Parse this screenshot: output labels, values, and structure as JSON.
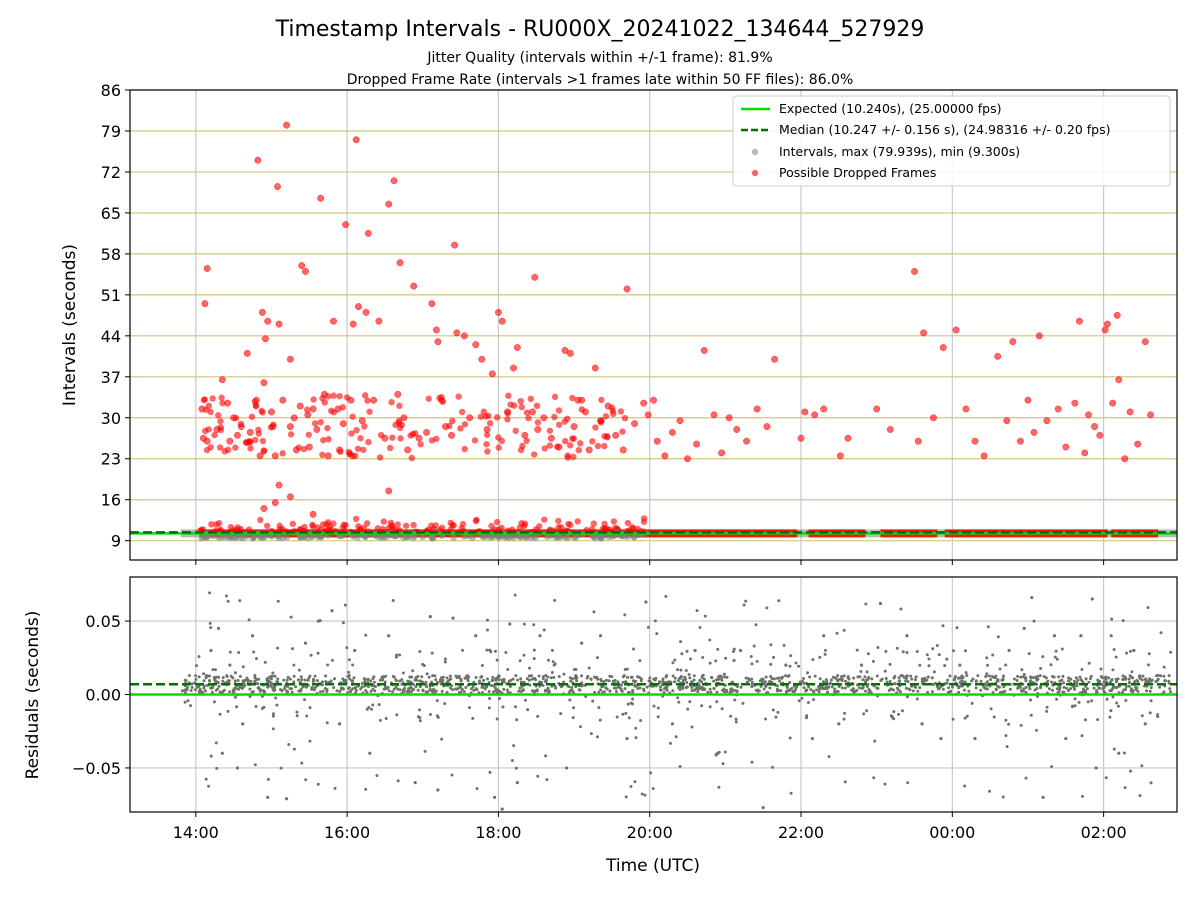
{
  "chart_data": [
    {
      "type": "scatter",
      "panel": "intervals",
      "title": "Timestamp Intervals - RU000X_20241022_134644_527929",
      "subtitle_lines": [
        "Jitter Quality (intervals within +/-1 frame): 81.9%",
        "Dropped Frame Rate (intervals >1 frames late within 50 FF files): 86.0%"
      ],
      "ylabel": "Intervals (seconds)",
      "ylim": [
        5.7,
        86
      ],
      "yticks": [
        9,
        16,
        23,
        30,
        37,
        44,
        51,
        58,
        65,
        72,
        79,
        86
      ],
      "xlim_hours": [
        13.13,
        26.97
      ],
      "grid": true,
      "legend_position": "upper right",
      "legend": [
        "Expected (10.240s), (25.00000 fps)",
        "Median (10.247 +/- 0.156 s), (24.98316 +/- 0.20 fps)",
        "Intervals, max (79.939s), min (9.300s)",
        "Possible Dropped Frames"
      ],
      "expected": 10.24,
      "median": 10.247,
      "colors": {
        "expected": "#00e000",
        "median": "#007000",
        "intervals": "#808080",
        "dropped": "#ff0000",
        "hgrid": "#d4c47a"
      },
      "series": [
        {
          "name": "Possible Dropped Frames",
          "points": [
            [
              14.08,
              31.5
            ],
            [
              14.12,
              49.5
            ],
            [
              14.15,
              55.5
            ],
            [
              14.1,
              26.5
            ],
            [
              14.15,
              26.0
            ],
            [
              14.28,
              28.0
            ],
            [
              14.35,
              36.5
            ],
            [
              14.42,
              32.5
            ],
            [
              14.45,
              26.0
            ],
            [
              14.5,
              30.0
            ],
            [
              14.55,
              27.0
            ],
            [
              14.6,
              28.5
            ],
            [
              14.68,
              41.0
            ],
            [
              14.72,
              27.5
            ],
            [
              14.8,
              33.0
            ],
            [
              14.82,
              74.0
            ],
            [
              14.85,
              23.5
            ],
            [
              14.88,
              48.0
            ],
            [
              14.9,
              36.0
            ],
            [
              14.92,
              43.5
            ],
            [
              14.95,
              46.5
            ],
            [
              15.0,
              31.0
            ],
            [
              15.02,
              28.5
            ],
            [
              15.05,
              23.5
            ],
            [
              15.08,
              69.5
            ],
            [
              15.1,
              46.0
            ],
            [
              15.15,
              33.0
            ],
            [
              15.2,
              80.0
            ],
            [
              15.25,
              40.0
            ],
            [
              15.25,
              28.5
            ],
            [
              15.3,
              30.0
            ],
            [
              15.33,
              24.5
            ],
            [
              15.38,
              32.0
            ],
            [
              15.4,
              56.0
            ],
            [
              15.45,
              55.0
            ],
            [
              15.48,
              30.5
            ],
            [
              15.5,
              25.0
            ],
            [
              15.55,
              31.5
            ],
            [
              15.6,
              28.0
            ],
            [
              15.65,
              67.5
            ],
            [
              15.7,
              34.0
            ],
            [
              15.75,
              23.5
            ],
            [
              15.82,
              46.5
            ],
            [
              15.88,
              31.5
            ],
            [
              15.9,
              24.5
            ],
            [
              15.95,
              29.0
            ],
            [
              15.98,
              63.0
            ],
            [
              16.05,
              33.0
            ],
            [
              16.08,
              46.0
            ],
            [
              16.12,
              77.5
            ],
            [
              16.15,
              49.0
            ],
            [
              16.2,
              29.5
            ],
            [
              16.25,
              48.0
            ],
            [
              16.28,
              61.5
            ],
            [
              16.35,
              33.0
            ],
            [
              16.42,
              46.5
            ],
            [
              16.5,
              26.5
            ],
            [
              16.55,
              66.5
            ],
            [
              16.62,
              70.5
            ],
            [
              16.67,
              34.0
            ],
            [
              16.7,
              56.5
            ],
            [
              16.75,
              30.0
            ],
            [
              16.8,
              24.5
            ],
            [
              16.88,
              52.5
            ],
            [
              16.95,
              26.5
            ],
            [
              17.05,
              27.5
            ],
            [
              17.12,
              49.5
            ],
            [
              17.18,
              45.0
            ],
            [
              17.2,
              43.0
            ],
            [
              17.25,
              33.0
            ],
            [
              17.3,
              28.5
            ],
            [
              17.38,
              27.0
            ],
            [
              17.42,
              59.5
            ],
            [
              17.45,
              44.5
            ],
            [
              17.55,
              44.0
            ],
            [
              17.62,
              30.0
            ],
            [
              17.7,
              42.5
            ],
            [
              17.78,
              40.0
            ],
            [
              17.85,
              28.0
            ],
            [
              17.92,
              37.5
            ],
            [
              18.0,
              48.0
            ],
            [
              18.05,
              46.5
            ],
            [
              18.12,
              31.0
            ],
            [
              18.2,
              38.5
            ],
            [
              18.25,
              42.0
            ],
            [
              18.35,
              27.0
            ],
            [
              18.45,
              31.0
            ],
            [
              18.48,
              54.0
            ],
            [
              18.52,
              28.0
            ],
            [
              18.6,
              30.0
            ],
            [
              18.7,
              26.5
            ],
            [
              18.8,
              25.0
            ],
            [
              18.88,
              41.5
            ],
            [
              18.95,
              41.0
            ],
            [
              19.0,
              28.5
            ],
            [
              19.05,
              33.0
            ],
            [
              19.1,
              33.0
            ],
            [
              19.15,
              31.0
            ],
            [
              19.2,
              24.5
            ],
            [
              19.28,
              38.5
            ],
            [
              19.35,
              29.5
            ],
            [
              19.45,
              32.0
            ],
            [
              19.55,
              27.0
            ],
            [
              19.65,
              24.5
            ],
            [
              19.7,
              52.0
            ],
            [
              19.8,
              29.0
            ],
            [
              19.92,
              32.5
            ],
            [
              19.98,
              30.5
            ],
            [
              20.05,
              33.0
            ],
            [
              20.1,
              26.0
            ],
            [
              20.2,
              23.5
            ],
            [
              20.3,
              27.5
            ],
            [
              20.4,
              29.5
            ],
            [
              20.5,
              23.0
            ],
            [
              20.62,
              25.5
            ],
            [
              20.72,
              41.5
            ],
            [
              20.85,
              30.5
            ],
            [
              20.95,
              24.0
            ],
            [
              21.05,
              30.0
            ],
            [
              21.15,
              28.0
            ],
            [
              21.28,
              26.0
            ],
            [
              21.42,
              31.5
            ],
            [
              21.55,
              28.5
            ],
            [
              21.65,
              40.0
            ],
            [
              22.0,
              26.5
            ],
            [
              22.05,
              31.0
            ],
            [
              22.18,
              30.5
            ],
            [
              22.3,
              31.5
            ],
            [
              22.52,
              23.5
            ],
            [
              22.62,
              26.5
            ],
            [
              23.0,
              31.5
            ],
            [
              23.18,
              28.0
            ],
            [
              23.5,
              55.0
            ],
            [
              23.55,
              26.0
            ],
            [
              23.62,
              44.5
            ],
            [
              23.75,
              30.0
            ],
            [
              23.88,
              42.0
            ],
            [
              24.05,
              45.0
            ],
            [
              24.18,
              31.5
            ],
            [
              24.3,
              26.0
            ],
            [
              24.42,
              23.5
            ],
            [
              24.6,
              40.5
            ],
            [
              24.72,
              29.5
            ],
            [
              24.8,
              43.0
            ],
            [
              24.9,
              26.0
            ],
            [
              25.0,
              33.0
            ],
            [
              25.08,
              27.5
            ],
            [
              25.15,
              44.0
            ],
            [
              25.25,
              29.5
            ],
            [
              25.4,
              31.5
            ],
            [
              25.5,
              25.0
            ],
            [
              25.62,
              32.5
            ],
            [
              25.68,
              46.5
            ],
            [
              25.75,
              24.0
            ],
            [
              25.8,
              30.5
            ],
            [
              25.88,
              28.5
            ],
            [
              25.95,
              27.0
            ],
            [
              26.02,
              45.0
            ],
            [
              26.05,
              46.0
            ],
            [
              26.12,
              32.5
            ],
            [
              26.18,
              47.5
            ],
            [
              26.2,
              36.5
            ],
            [
              26.28,
              23.0
            ],
            [
              26.35,
              31.0
            ],
            [
              26.45,
              25.5
            ],
            [
              26.55,
              43.0
            ],
            [
              26.62,
              30.5
            ],
            [
              15.1,
              18.5
            ],
            [
              15.05,
              15.5
            ],
            [
              15.25,
              16.5
            ],
            [
              16.55,
              17.5
            ],
            [
              14.9,
              14.5
            ],
            [
              15.55,
              13.5
            ]
          ]
        }
      ]
    },
    {
      "type": "scatter",
      "panel": "residuals",
      "xlabel": "Time (UTC)",
      "ylabel": "Residuals (seconds)",
      "ylim": [
        -0.08,
        0.08
      ],
      "yticks": [
        -0.05,
        0.0,
        0.05
      ],
      "ytick_labels": [
        "−0.05",
        "0.00",
        "0.05"
      ],
      "xticks_hours": [
        14,
        16,
        18,
        20,
        22,
        24,
        26
      ],
      "xtick_labels": [
        "14:00",
        "16:00",
        "18:00",
        "20:00",
        "22:00",
        "00:00",
        "02:00"
      ],
      "expected_residual": 0.0,
      "median_residual": 0.007,
      "grid": true,
      "series": [
        {
          "name": "Residuals",
          "points": [
            [
              14.2,
              0.03
            ],
            [
              14.3,
              0.045
            ],
            [
              14.35,
              -0.04
            ],
            [
              14.45,
              0.02
            ],
            [
              14.55,
              -0.05
            ],
            [
              14.62,
              -0.02
            ],
            [
              14.75,
              0.04
            ],
            [
              14.95,
              -0.07
            ],
            [
              15.2,
              -0.071
            ],
            [
              15.45,
              0.035
            ],
            [
              15.62,
              0.05
            ],
            [
              15.8,
              0.057
            ],
            [
              15.9,
              -0.02
            ],
            [
              16.1,
              0.03
            ],
            [
              16.3,
              -0.04
            ],
            [
              16.55,
              0.04
            ],
            [
              16.9,
              -0.06
            ],
            [
              17.1,
              0.053
            ],
            [
              17.2,
              -0.065
            ],
            [
              17.4,
              0.052
            ],
            [
              17.7,
              0.04
            ],
            [
              17.95,
              -0.07
            ],
            [
              18.05,
              -0.078
            ],
            [
              18.15,
              0.048
            ],
            [
              18.25,
              -0.06
            ],
            [
              18.55,
              0.04
            ],
            [
              18.9,
              -0.05
            ],
            [
              19.1,
              0.035
            ],
            [
              19.35,
              0.04
            ],
            [
              19.7,
              -0.03
            ],
            [
              19.95,
              0.063
            ],
            [
              20.3,
              -0.02
            ],
            [
              20.6,
              0.03
            ],
            [
              20.9,
              -0.04
            ],
            [
              21.2,
              0.03
            ],
            [
              21.5,
              -0.077
            ],
            [
              21.8,
              0.02
            ],
            [
              22.15,
              -0.03
            ],
            [
              22.3,
              0.04
            ],
            [
              22.5,
              -0.02
            ],
            [
              22.8,
              0.02
            ],
            [
              23.05,
              0.062
            ],
            [
              23.2,
              -0.015
            ],
            [
              23.4,
              0.04
            ],
            [
              23.6,
              -0.02
            ],
            [
              23.85,
              -0.03
            ],
            [
              24.1,
              0.02
            ],
            [
              24.3,
              -0.03
            ],
            [
              24.6,
              0.01
            ],
            [
              24.75,
              0.03
            ],
            [
              24.95,
              0.045
            ],
            [
              25.05,
              0.066
            ],
            [
              25.2,
              -0.07
            ],
            [
              25.35,
              0.04
            ],
            [
              25.5,
              -0.03
            ],
            [
              25.7,
              0.04
            ],
            [
              25.85,
              0.065
            ],
            [
              25.9,
              -0.05
            ],
            [
              26.1,
              0.04
            ],
            [
              26.2,
              -0.04
            ],
            [
              26.4,
              0.03
            ],
            [
              26.55,
              -0.02
            ]
          ]
        }
      ]
    }
  ]
}
